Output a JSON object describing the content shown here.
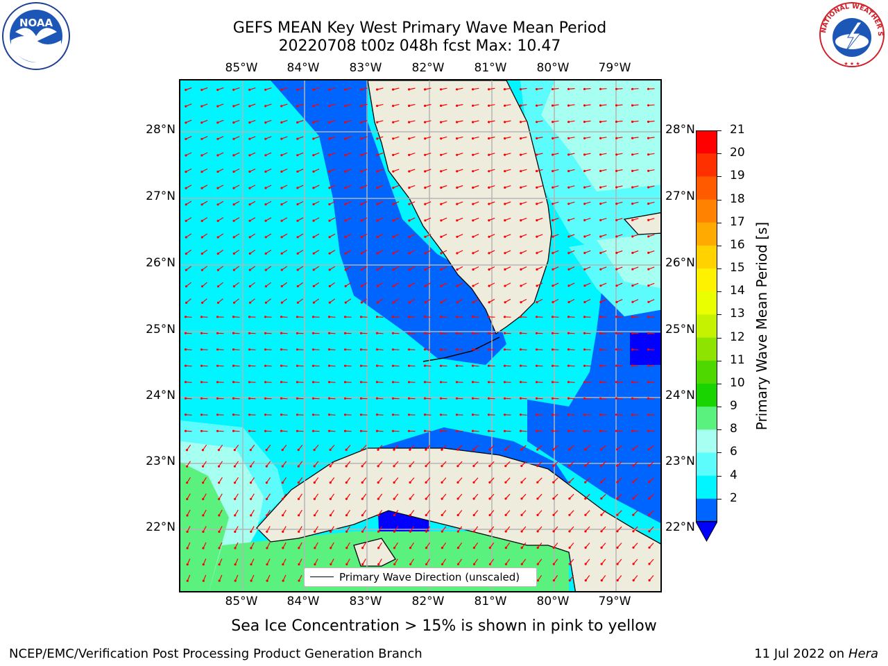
{
  "title": {
    "line1": "GEFS MEAN Key West Primary Wave Mean Period",
    "line2": "20220708 t00z 048h fcst   Max: 10.47"
  },
  "logos": {
    "left": {
      "icon": "noaa-logo",
      "text": "NOAA"
    },
    "right": {
      "icon": "nws-logo",
      "text": "NATIONAL WEATHER SERVICE"
    }
  },
  "axes": {
    "lon_labels": [
      "85°W",
      "84°W",
      "83°W",
      "82°W",
      "81°W",
      "80°W",
      "79°W"
    ],
    "lat_labels": [
      "28°N",
      "27°N",
      "26°N",
      "25°N",
      "24°N",
      "23°N",
      "22°N"
    ]
  },
  "colorbar": {
    "label": "Primary Wave Mean Period [s]",
    "ticks": [
      "21",
      "20",
      "19",
      "18",
      "17",
      "16",
      "15",
      "14",
      "13",
      "12",
      "11",
      "10",
      "9",
      "8",
      "6",
      "4",
      "2"
    ],
    "colors_top_to_bottom": [
      "#ff0000",
      "#ff3000",
      "#ff5a00",
      "#ff8200",
      "#ffaa00",
      "#ffd200",
      "#fff200",
      "#eaff00",
      "#c4f200",
      "#8ee400",
      "#4fd800",
      "#19d400",
      "#5bf17f",
      "#a6fff0",
      "#5dfcfc",
      "#00f5ff",
      "#0064ff"
    ],
    "extend_color": "#0000ff"
  },
  "legend": {
    "label": "Primary Wave Direction (unscaled)"
  },
  "footer": {
    "note": "Sea Ice Concentration > 15% is shown in pink to yellow",
    "left": "NCEP/EMC/Verification Post Processing Product Generation Branch",
    "right_prefix": "11 Jul 2022 on ",
    "right_machine": "Hera"
  },
  "colors": {
    "land": "#eeecdc",
    "period_4_6": "#00f5ff",
    "period_2_4": "#0064ff",
    "period_6_8": "#5dfcfc",
    "period_8_9": "#a6fff0",
    "period_9_10": "#5bf17f",
    "arrow": "#ff0000",
    "grid": "#b4b4b4"
  }
}
